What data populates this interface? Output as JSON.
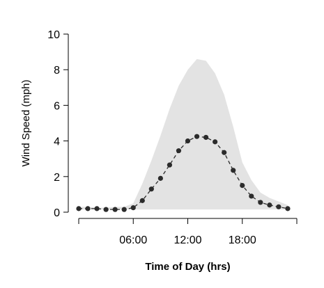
{
  "chart_data": {
    "type": "line",
    "xlabel": "Time of Day (hrs)",
    "ylabel": "Wind Speed (mph)",
    "xlim": [
      0,
      24
    ],
    "ylim": [
      0,
      10
    ],
    "x_ticks": [
      0,
      6,
      12,
      18,
      24
    ],
    "x_tick_labels": [
      "",
      "06:00",
      "12:00",
      "18:00",
      ""
    ],
    "y_ticks": [
      0,
      2,
      4,
      6,
      8,
      10
    ],
    "y_tick_labels": [
      "0",
      "2",
      "4",
      "6",
      "8",
      "10"
    ],
    "grid": false,
    "colors": {
      "band": "#e3e3e3",
      "line": "#2b2b2b",
      "points": "#2b2b2b",
      "axis": "#000000"
    },
    "band": {
      "x": [
        0,
        1,
        2,
        3,
        4,
        5,
        6,
        7,
        8,
        9,
        10,
        11,
        12,
        13,
        14,
        15,
        16,
        17,
        18,
        19,
        20,
        21,
        22,
        23
      ],
      "upper": [
        0.3,
        0.3,
        0.25,
        0.25,
        0.3,
        0.3,
        0.5,
        1.6,
        2.9,
        4.3,
        5.8,
        7.1,
        8.0,
        8.6,
        8.5,
        7.8,
        6.6,
        4.8,
        2.8,
        1.8,
        1.1,
        0.8,
        0.6,
        0.4
      ],
      "lower": [
        0.15,
        0.15,
        0.15,
        0.15,
        0.15,
        0.15,
        0.15,
        0.15,
        0.15,
        0.15,
        0.15,
        0.15,
        0.15,
        0.15,
        0.15,
        0.15,
        0.15,
        0.15,
        0.15,
        0.15,
        0.15,
        0.15,
        0.15,
        0.15
      ]
    },
    "series": [
      {
        "x": [
          0,
          1,
          2,
          3,
          4,
          5,
          6,
          7,
          8,
          9,
          10,
          11,
          12,
          13,
          14,
          15,
          16,
          17,
          18,
          19,
          20,
          21,
          22,
          23
        ],
        "values": [
          0.2,
          0.2,
          0.2,
          0.15,
          0.15,
          0.15,
          0.25,
          0.65,
          1.3,
          1.9,
          2.65,
          3.45,
          4.0,
          4.25,
          4.2,
          3.95,
          3.35,
          2.35,
          1.5,
          0.9,
          0.55,
          0.4,
          0.3,
          0.2
        ]
      }
    ]
  }
}
